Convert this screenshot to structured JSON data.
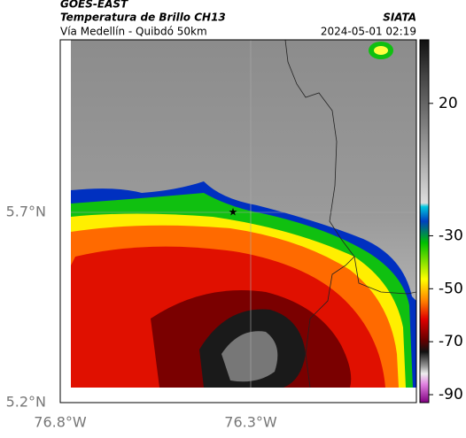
{
  "header": {
    "source": "GOES-EAST",
    "title": "Temperatura de Brillo CH13",
    "subtitle": "Vía Medellín - Quibdó 50km",
    "org": "SIATA",
    "datetime": "2024-05-01 02:19"
  },
  "axes": {
    "y_labels": [
      "5.7°N",
      "5.2°N"
    ],
    "x_labels": [
      "76.8°W",
      "76.3°W"
    ]
  },
  "colorbar": {
    "range": [
      -93,
      44
    ],
    "ticks": [
      20,
      -30,
      -50,
      -70,
      -90
    ]
  }
}
